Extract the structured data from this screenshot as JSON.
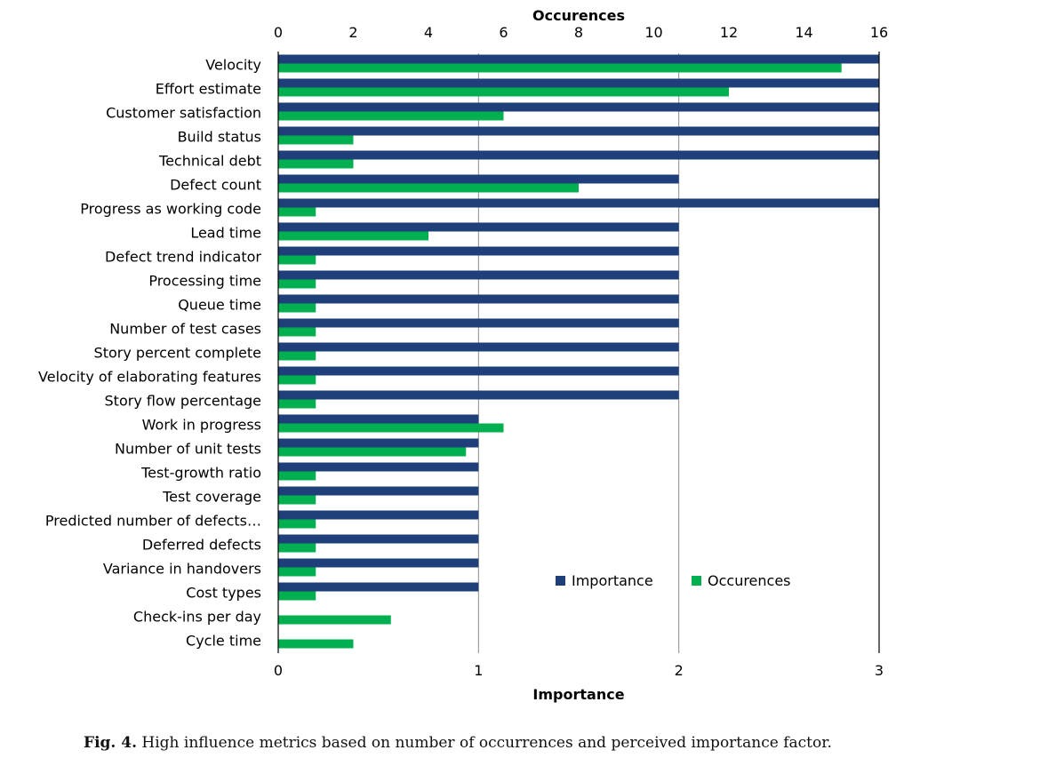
{
  "chart_data": {
    "type": "bar",
    "orientation": "horizontal",
    "categories": [
      "Velocity",
      "Effort estimate",
      "Customer satisfaction",
      "Build status",
      "Technical debt",
      "Defect count",
      "Progress as working code",
      "Lead time",
      "Defect trend indicator",
      "Processing time",
      "Queue time",
      "Number of test cases",
      "Story percent complete",
      "Velocity of elaborating features",
      "Story flow percentage",
      "Work in progress",
      "Number of unit tests",
      "Test-growth ratio",
      "Test coverage",
      "Predicted number  of defects…",
      "Deferred defects",
      "Variance in handovers",
      "Cost types",
      "Check-ins per day",
      "Cycle time"
    ],
    "series": [
      {
        "name": "Importance",
        "axis": "bottom",
        "color": "#1f3f7a",
        "values": [
          3,
          3,
          3,
          3,
          3,
          2,
          3,
          2,
          2,
          2,
          2,
          2,
          2,
          2,
          2,
          1,
          1,
          1,
          1,
          1,
          1,
          1,
          1,
          0,
          0
        ]
      },
      {
        "name": "Occurences",
        "axis": "top",
        "color": "#00b050",
        "values": [
          15,
          12,
          6,
          2,
          2,
          8,
          1,
          4,
          1,
          1,
          1,
          1,
          1,
          1,
          1,
          6,
          5,
          1,
          1,
          1,
          1,
          1,
          1,
          3,
          2
        ]
      }
    ],
    "top_axis": {
      "label": "Occurences",
      "range": [
        0,
        16
      ],
      "ticks": [
        "0",
        "2",
        "4",
        "6",
        "8",
        "10",
        "12",
        "14",
        "16"
      ]
    },
    "bottom_axis": {
      "label": "Importance",
      "range": [
        0,
        3
      ],
      "ticks": [
        "0",
        "1",
        "2",
        "3"
      ]
    },
    "gridlines": "vertical at importance ticks",
    "legend_position": "lower-right"
  },
  "caption": {
    "label": "Fig. 4.",
    "text": "High influence metrics based on number of occurrences and perceived importance factor."
  }
}
